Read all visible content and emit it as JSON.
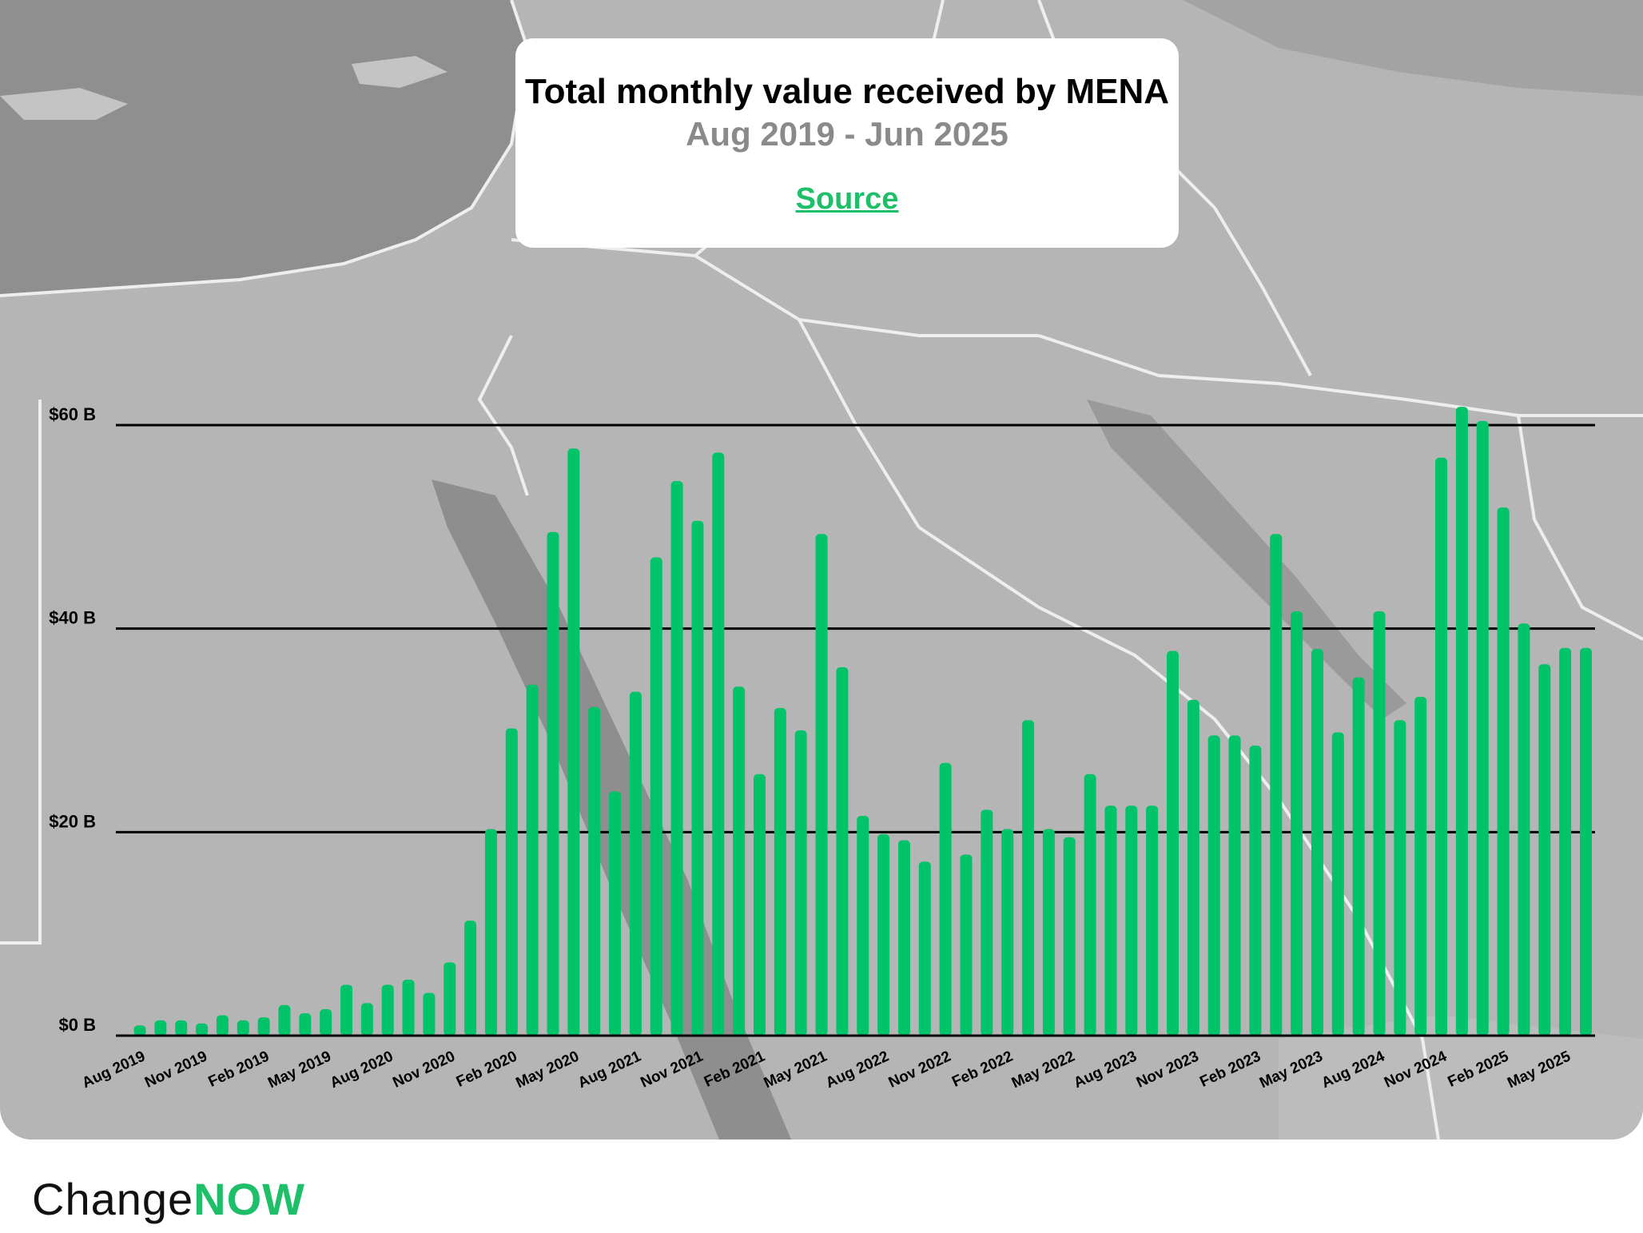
{
  "card": {
    "title": "Total monthly value received by MENA",
    "subtitle": "Aug 2019 - Jun 2025",
    "source_label": "Source"
  },
  "brand": {
    "part1": "Change",
    "part2": "NOW",
    "accent_color": "#1fbf6a"
  },
  "chart_data": {
    "type": "bar",
    "title": "Total monthly value received by MENA",
    "subtitle": "Aug 2019 - Jun 2025",
    "bar_color": "#00c36a",
    "ylim": [
      0,
      60
    ],
    "y_ticks": [
      {
        "value": 0,
        "label": "$0 B"
      },
      {
        "value": 20,
        "label": "$20 B"
      },
      {
        "value": 40,
        "label": "$40 B"
      },
      {
        "value": 60,
        "label": "$60 B"
      }
    ],
    "x_tick_labels": [
      {
        "index": 0,
        "label": "Aug 2019"
      },
      {
        "index": 3,
        "label": "Nov 2019"
      },
      {
        "index": 6,
        "label": "Feb 2019"
      },
      {
        "index": 9,
        "label": "May 2019"
      },
      {
        "index": 12,
        "label": "Aug 2020"
      },
      {
        "index": 15,
        "label": "Nov 2020"
      },
      {
        "index": 18,
        "label": "Feb 2020"
      },
      {
        "index": 21,
        "label": "May 2020"
      },
      {
        "index": 24,
        "label": "Aug 2021"
      },
      {
        "index": 27,
        "label": "Nov 2021"
      },
      {
        "index": 30,
        "label": "Feb 2021"
      },
      {
        "index": 33,
        "label": "May 2021"
      },
      {
        "index": 36,
        "label": "Aug 2022"
      },
      {
        "index": 39,
        "label": "Nov 2022"
      },
      {
        "index": 42,
        "label": "Feb 2022"
      },
      {
        "index": 45,
        "label": "May 2022"
      },
      {
        "index": 48,
        "label": "Aug 2023"
      },
      {
        "index": 51,
        "label": "Nov 2023"
      },
      {
        "index": 54,
        "label": "Feb 2023"
      },
      {
        "index": 57,
        "label": "May 2023"
      },
      {
        "index": 60,
        "label": "Aug 2024"
      },
      {
        "index": 63,
        "label": "Nov 2024"
      },
      {
        "index": 66,
        "label": "Feb 2025"
      },
      {
        "index": 69,
        "label": "May 2025"
      }
    ],
    "values": [
      1.0,
      1.5,
      1.5,
      1.2,
      2.0,
      1.5,
      1.8,
      3.0,
      2.2,
      2.6,
      5.0,
      3.2,
      5.0,
      5.5,
      4.2,
      7.2,
      11.3,
      20.3,
      30.2,
      34.5,
      49.5,
      57.7,
      32.3,
      24.0,
      33.8,
      47.0,
      54.5,
      50.6,
      57.3,
      34.3,
      25.7,
      32.2,
      30.0,
      49.3,
      36.2,
      21.6,
      19.8,
      19.2,
      17.1,
      26.8,
      17.8,
      22.2,
      20.3,
      31.0,
      20.3,
      19.5,
      25.7,
      22.6,
      22.6,
      22.6,
      37.8,
      33.0,
      29.5,
      29.5,
      28.5,
      49.3,
      41.7,
      38.0,
      29.8,
      35.2,
      41.7,
      31.0,
      33.3,
      56.8,
      61.8,
      60.4,
      51.9,
      40.5,
      36.5,
      38.1,
      38.1
    ]
  }
}
